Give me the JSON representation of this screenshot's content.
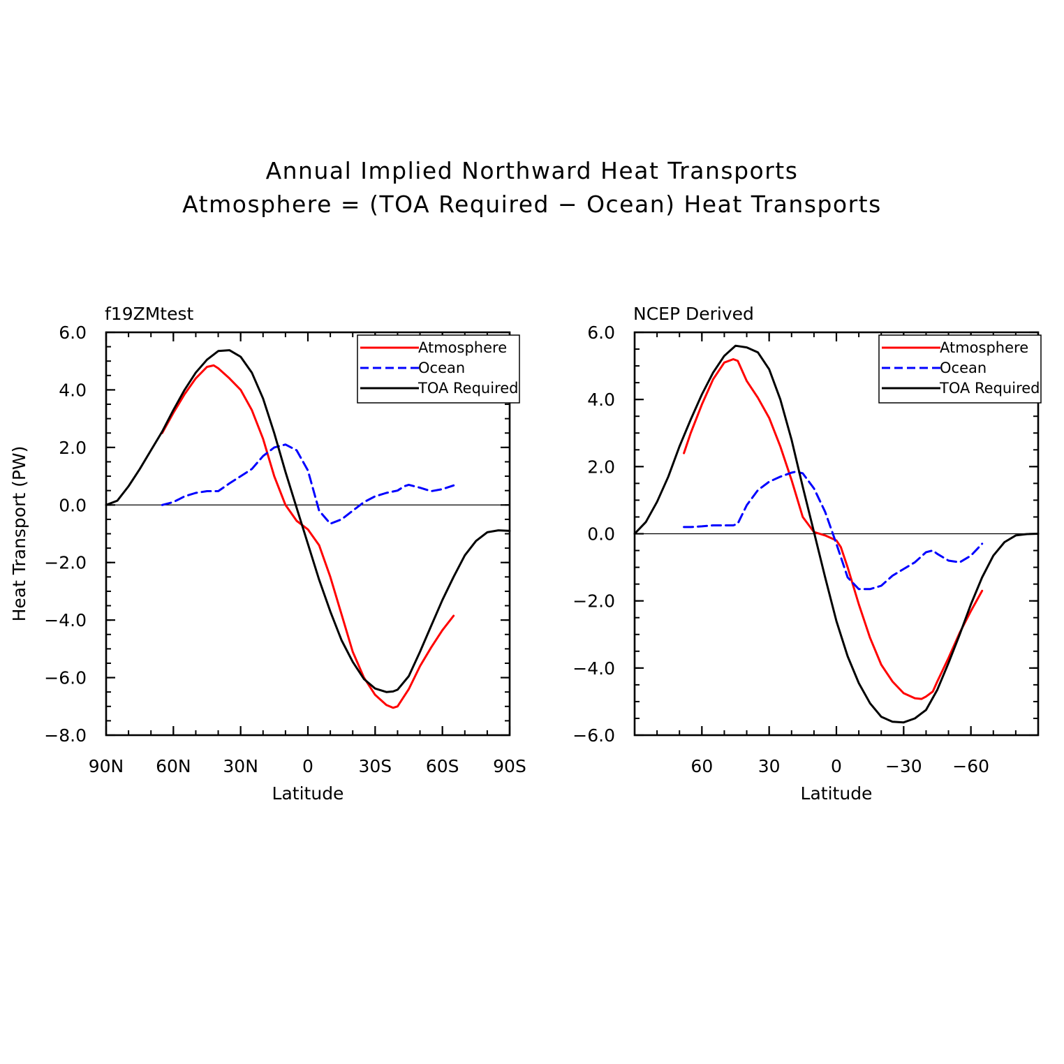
{
  "figure": {
    "title_line1": "Annual Implied Northward Heat Transports",
    "title_line2": "Atmosphere = (TOA Required − Ocean) Heat Transports"
  },
  "colors": {
    "atmosphere": "#ff0000",
    "ocean": "#0000ff",
    "toa": "#000000"
  },
  "chart_data": [
    {
      "type": "line",
      "panel_title": "f19ZMtest",
      "xlabel": "Latitude",
      "ylabel": "Heat Transport (PW)",
      "xlim": [
        90,
        -90
      ],
      "ylim": [
        -8,
        6
      ],
      "xticks": [
        90,
        60,
        30,
        0,
        -30,
        -60,
        -90
      ],
      "xtick_labels": [
        "90N",
        "60N",
        "30N",
        "0",
        "30S",
        "60S",
        "90S"
      ],
      "yticks": [
        6,
        4,
        2,
        0,
        -2,
        -4,
        -6,
        -8
      ],
      "ytick_labels": [
        "6.0",
        "4.0",
        "2.0",
        "0.0",
        "−2.0",
        "−4.0",
        "−6.0",
        "−8.0"
      ],
      "zero_line": true,
      "legend": {
        "position": "top-right",
        "entries": [
          "Atmosphere",
          "Ocean",
          "TOA Required"
        ]
      },
      "series": [
        {
          "name": "Atmosphere",
          "color_key": "atmosphere",
          "dash": false,
          "x": [
            65,
            60,
            55,
            50,
            45,
            42,
            40,
            35,
            30,
            25,
            20,
            15,
            10,
            5,
            0,
            -5,
            -10,
            -15,
            -20,
            -25,
            -30,
            -35,
            -38,
            -40,
            -45,
            -50,
            -55,
            -60,
            -65
          ],
          "y": [
            2.5,
            3.2,
            3.85,
            4.4,
            4.8,
            4.85,
            4.75,
            4.4,
            4.0,
            3.3,
            2.3,
            1.0,
            0.0,
            -0.55,
            -0.85,
            -1.4,
            -2.5,
            -3.8,
            -5.1,
            -6.0,
            -6.6,
            -6.95,
            -7.05,
            -7.0,
            -6.4,
            -5.6,
            -4.95,
            -4.35,
            -3.85
          ]
        },
        {
          "name": "Ocean",
          "color_key": "ocean",
          "dash": true,
          "x": [
            65,
            60,
            55,
            50,
            45,
            40,
            35,
            30,
            25,
            20,
            15,
            10,
            5,
            0,
            -5,
            -10,
            -15,
            -20,
            -25,
            -30,
            -35,
            -40,
            -43,
            -45,
            -50,
            -55,
            -60,
            -65
          ],
          "y": [
            0.0,
            0.1,
            0.3,
            0.42,
            0.48,
            0.48,
            0.75,
            1.0,
            1.25,
            1.7,
            2.0,
            2.1,
            1.9,
            1.2,
            -0.2,
            -0.65,
            -0.5,
            -0.2,
            0.1,
            0.3,
            0.42,
            0.5,
            0.65,
            0.7,
            0.6,
            0.48,
            0.55,
            0.68
          ]
        },
        {
          "name": "TOA Required",
          "color_key": "toa",
          "dash": false,
          "x": [
            90,
            85,
            80,
            75,
            70,
            65,
            60,
            55,
            50,
            45,
            40,
            35,
            30,
            25,
            20,
            15,
            10,
            5,
            0,
            -5,
            -10,
            -15,
            -20,
            -25,
            -30,
            -35,
            -38,
            -40,
            -45,
            -50,
            -55,
            -60,
            -65,
            -70,
            -75,
            -80,
            -85,
            -90
          ],
          "y": [
            0.0,
            0.15,
            0.65,
            1.25,
            1.9,
            2.55,
            3.3,
            4.0,
            4.6,
            5.05,
            5.35,
            5.38,
            5.15,
            4.6,
            3.7,
            2.5,
            1.15,
            -0.1,
            -1.35,
            -2.6,
            -3.7,
            -4.7,
            -5.45,
            -6.05,
            -6.38,
            -6.5,
            -6.48,
            -6.42,
            -5.95,
            -5.1,
            -4.2,
            -3.3,
            -2.5,
            -1.75,
            -1.25,
            -0.95,
            -0.88,
            -0.9
          ]
        }
      ]
    },
    {
      "type": "line",
      "panel_title": "NCEP Derived",
      "xlabel": "Latitude",
      "ylabel": "",
      "xlim": [
        90,
        -90
      ],
      "ylim": [
        -6,
        6
      ],
      "xticks": [
        60,
        30,
        0,
        -30,
        -60
      ],
      "xtick_labels": [
        "60",
        "30",
        "0",
        "−30",
        "−60"
      ],
      "yticks": [
        6,
        4,
        2,
        0,
        -2,
        -4,
        -6
      ],
      "ytick_labels": [
        "6.0",
        "4.0",
        "2.0",
        "0.0",
        "−2.0",
        "−4.0",
        "−6.0"
      ],
      "zero_line": true,
      "legend": {
        "position": "top-right",
        "entries": [
          "Atmosphere",
          "Ocean",
          "TOA Required"
        ]
      },
      "series": [
        {
          "name": "Atmosphere",
          "color_key": "atmosphere",
          "dash": false,
          "x": [
            68,
            65,
            60,
            55,
            50,
            46,
            44,
            40,
            35,
            30,
            25,
            20,
            15,
            10,
            5,
            0,
            -2,
            -5,
            -10,
            -15,
            -20,
            -25,
            -30,
            -35,
            -38,
            -40,
            -43,
            -45,
            -50,
            -55,
            -60,
            -65
          ],
          "y": [
            2.4,
            3.0,
            3.85,
            4.6,
            5.1,
            5.2,
            5.15,
            4.55,
            4.05,
            3.45,
            2.6,
            1.6,
            0.5,
            0.05,
            -0.05,
            -0.2,
            -0.4,
            -1.0,
            -2.1,
            -3.1,
            -3.9,
            -4.4,
            -4.75,
            -4.9,
            -4.92,
            -4.85,
            -4.7,
            -4.4,
            -3.7,
            -2.95,
            -2.3,
            -1.7
          ]
        },
        {
          "name": "Ocean",
          "color_key": "ocean",
          "dash": true,
          "x": [
            68,
            65,
            60,
            55,
            50,
            46,
            44,
            40,
            35,
            30,
            25,
            20,
            18,
            15,
            10,
            5,
            0,
            -5,
            -10,
            -15,
            -20,
            -25,
            -30,
            -35,
            -40,
            -43,
            -45,
            -50,
            -55,
            -60,
            -65
          ],
          "y": [
            0.2,
            0.2,
            0.22,
            0.25,
            0.25,
            0.25,
            0.3,
            0.85,
            1.3,
            1.55,
            1.7,
            1.82,
            1.85,
            1.8,
            1.35,
            0.65,
            -0.3,
            -1.3,
            -1.65,
            -1.65,
            -1.55,
            -1.25,
            -1.05,
            -0.85,
            -0.55,
            -0.5,
            -0.6,
            -0.8,
            -0.85,
            -0.65,
            -0.3
          ]
        },
        {
          "name": "TOA Required",
          "color_key": "toa",
          "dash": false,
          "x": [
            90,
            85,
            80,
            75,
            70,
            65,
            60,
            55,
            50,
            45,
            40,
            35,
            30,
            25,
            20,
            15,
            10,
            5,
            0,
            -5,
            -10,
            -15,
            -20,
            -25,
            -30,
            -35,
            -38,
            -40,
            -45,
            -50,
            -55,
            -60,
            -65,
            -70,
            -75,
            -80,
            -85,
            -90
          ],
          "y": [
            0.0,
            0.35,
            0.95,
            1.7,
            2.6,
            3.4,
            4.15,
            4.8,
            5.3,
            5.6,
            5.55,
            5.4,
            4.9,
            4.0,
            2.8,
            1.4,
            0.05,
            -1.3,
            -2.6,
            -3.65,
            -4.45,
            -5.05,
            -5.45,
            -5.6,
            -5.62,
            -5.5,
            -5.35,
            -5.25,
            -4.65,
            -3.85,
            -3.0,
            -2.1,
            -1.3,
            -0.65,
            -0.25,
            -0.05,
            -0.01,
            0.0
          ]
        }
      ]
    }
  ]
}
